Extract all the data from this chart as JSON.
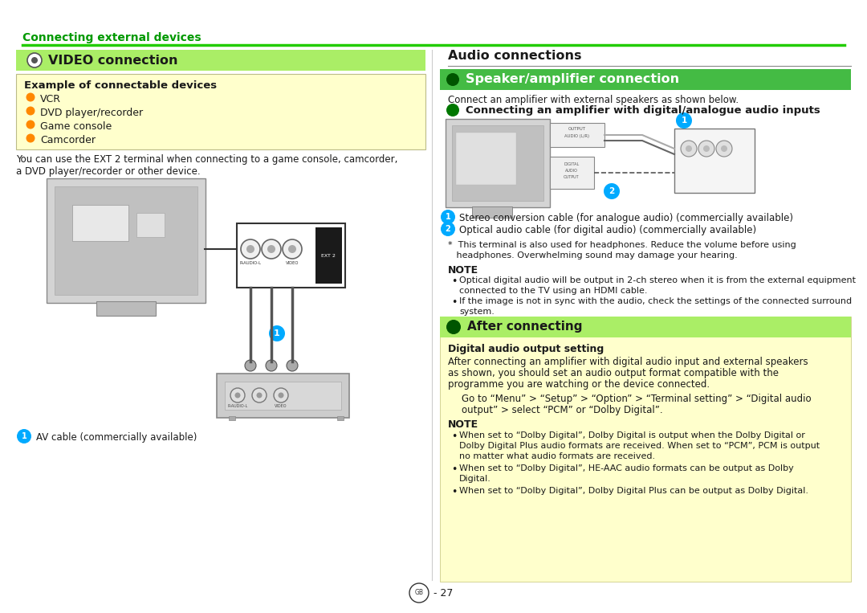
{
  "page_bg": "#ffffff",
  "green_line_color": "#22cc00",
  "light_green_section_bg": "#aaee66",
  "light_yellow_bg": "#ffffcc",
  "speaker_header_bg": "#44bb44",
  "after_connecting_bg": "#aaee66",
  "orange_bullet": "#ff8800",
  "title_green": "#009900",
  "cyan_circle": "#00aaff",
  "page_title": "Connecting external devices",
  "left_section_title": "VIDEO connection",
  "right_section_title": "Audio connections",
  "speaker_title": "Speaker/amplifier connection",
  "connecting_title": "Connecting an amplifier with digital/analogue audio inputs",
  "example_title": "Example of connectable devices",
  "example_items": [
    "VCR",
    "DVD player/recorder",
    "Game console",
    "Camcorder"
  ],
  "body_text1": "You can use the EXT 2 terminal when connecting to a game console, camcorder,",
  "body_text2": "a DVD player/recorder or other device.",
  "av_label": "AV cable (commercially available)",
  "stereo_label": "Stereo conversion cable (for analogue audio) (commercially available)",
  "optical_label": "Optical audio cable (for digital audio) (commercially available)",
  "footnote_line1": "*  This terminal is also used for headphones. Reduce the volume before using",
  "footnote_line2": "   headphones. Overwhelming sound may damage your hearing.",
  "note_title": "NOTE",
  "note_item1": "Optical digital audio will be output in 2-ch stereo when it is from the external equipment connected to the TV using an HDMI cable.",
  "note_item1b": "connected to the TV using an HDMI cable.",
  "note_item2": "If the image is not in sync with the audio, check the settings of the connected surround",
  "note_item2b": "system.",
  "after_title": "After connecting",
  "after_subtitle": "Digital audio output setting",
  "after_text1": "After connecting an amplifier with digital audio input and external speakers",
  "after_text2": "as shown, you should set an audio output format compatible with the",
  "after_text3": "programme you are watching or the device connected.",
  "after_menu1": "Go to “Menu” > “Setup” > “Option” > “Terminal setting” > “Digital audio",
  "after_menu2": "output” > select “PCM” or “Dolby Digital”.",
  "note2_item1a": "When set to “Dolby Digital”, Dolby Digital is output when the Dolby Digital or",
  "note2_item1b": "Dolby Digital Plus audio formats are received. When set to “PCM”, PCM is output",
  "note2_item1c": "no matter what audio formats are received.",
  "note2_item2a": "When set to “Dolby Digital”, HE-AAC audio formats can be output as Dolby",
  "note2_item2b": "Digital.",
  "note2_item3": "When set to “Dolby Digital”, Dolby Digital Plus can be output as Dolby Digital.",
  "page_number": "GB - 27",
  "connect_desc": "Connect an amplifier with external speakers as shown below."
}
